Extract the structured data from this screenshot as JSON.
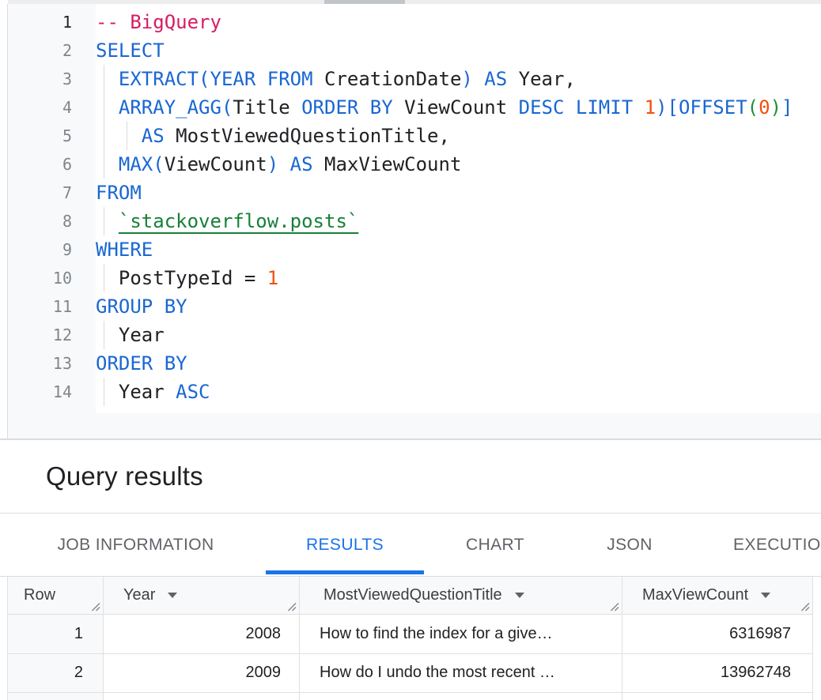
{
  "colors": {
    "keyword_blue": "#1967d2",
    "comment_pink": "#d81b60",
    "number_orange": "#f0500e",
    "table_ref_green": "#188038",
    "paren_green": "#1e8e3e",
    "accent_blue": "#1a73e8",
    "text_dark": "#202124",
    "gray_text": "#5f6368"
  },
  "editor": {
    "current_line": 1,
    "lines": [
      {
        "n": "1",
        "tokens": [
          {
            "t": "-- BigQuery",
            "c": "cmt"
          }
        ]
      },
      {
        "n": "2",
        "tokens": [
          {
            "t": "SELECT",
            "c": "kw"
          }
        ]
      },
      {
        "n": "3",
        "tokens": [
          {
            "t": "  ",
            "c": "pl"
          },
          {
            "t": "EXTRACT(YEAR FROM ",
            "c": "kw"
          },
          {
            "t": "CreationDate",
            "c": "pl"
          },
          {
            "t": ") AS ",
            "c": "kw"
          },
          {
            "t": "Year,",
            "c": "pl"
          }
        ]
      },
      {
        "n": "4",
        "tokens": [
          {
            "t": "  ",
            "c": "pl"
          },
          {
            "t": "ARRAY_AGG(",
            "c": "kw"
          },
          {
            "t": "Title ",
            "c": "pl"
          },
          {
            "t": "ORDER BY ",
            "c": "kw"
          },
          {
            "t": "ViewCount ",
            "c": "pl"
          },
          {
            "t": "DESC LIMIT ",
            "c": "kw"
          },
          {
            "t": "1",
            "c": "num"
          },
          {
            "t": ")[OFFSET",
            "c": "kw"
          },
          {
            "t": "(",
            "c": "grn"
          },
          {
            "t": "0",
            "c": "num"
          },
          {
            "t": ")",
            "c": "grn"
          },
          {
            "t": "]",
            "c": "kw"
          }
        ]
      },
      {
        "n": "5",
        "tokens": [
          {
            "t": "    ",
            "c": "pl"
          },
          {
            "t": "AS ",
            "c": "kw"
          },
          {
            "t": "MostViewedQuestionTitle,",
            "c": "pl"
          }
        ]
      },
      {
        "n": "6",
        "tokens": [
          {
            "t": "  ",
            "c": "pl"
          },
          {
            "t": "MAX(",
            "c": "kw"
          },
          {
            "t": "ViewCount",
            "c": "pl"
          },
          {
            "t": ") AS ",
            "c": "kw"
          },
          {
            "t": "MaxViewCount",
            "c": "pl"
          }
        ]
      },
      {
        "n": "7",
        "tokens": [
          {
            "t": "FROM",
            "c": "kw"
          }
        ]
      },
      {
        "n": "8",
        "tokens": [
          {
            "t": "  ",
            "c": "pl"
          },
          {
            "t": "`stackoverflow.posts`",
            "c": "tbl"
          }
        ]
      },
      {
        "n": "9",
        "tokens": [
          {
            "t": "WHERE",
            "c": "kw"
          }
        ]
      },
      {
        "n": "10",
        "tokens": [
          {
            "t": "  PostTypeId = ",
            "c": "pl"
          },
          {
            "t": "1",
            "c": "num"
          }
        ]
      },
      {
        "n": "11",
        "tokens": [
          {
            "t": "GROUP BY",
            "c": "kw"
          }
        ]
      },
      {
        "n": "12",
        "tokens": [
          {
            "t": "  Year",
            "c": "pl"
          }
        ]
      },
      {
        "n": "13",
        "tokens": [
          {
            "t": "ORDER BY",
            "c": "kw"
          }
        ]
      },
      {
        "n": "14",
        "tokens": [
          {
            "t": "  Year ",
            "c": "pl"
          },
          {
            "t": "ASC",
            "c": "kw"
          }
        ]
      }
    ]
  },
  "results_panel": {
    "title": "Query results",
    "tabs": [
      {
        "label": "JOB INFORMATION",
        "active": false
      },
      {
        "label": "RESULTS",
        "active": true
      },
      {
        "label": "CHART",
        "active": false
      },
      {
        "label": "JSON",
        "active": false
      },
      {
        "label": "EXECUTION DETAILS",
        "active": false
      }
    ],
    "table": {
      "columns": [
        {
          "label": "Row",
          "menu_arrow": false
        },
        {
          "label": "Year",
          "menu_arrow": true
        },
        {
          "label": "MostViewedQuestionTitle",
          "menu_arrow": true
        },
        {
          "label": "MaxViewCount",
          "menu_arrow": true
        }
      ],
      "rows": [
        {
          "cells": [
            "1",
            "2008",
            "How to find the index for a give…",
            "6316987"
          ]
        },
        {
          "cells": [
            "2",
            "2009",
            "How do I undo the most recent …",
            "13962748"
          ]
        }
      ]
    }
  }
}
